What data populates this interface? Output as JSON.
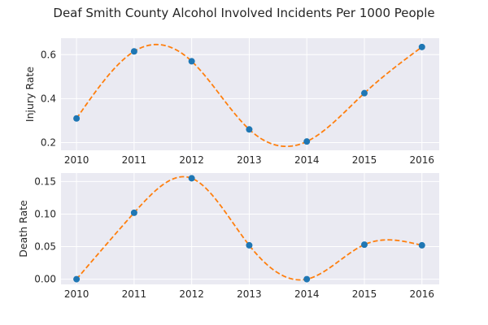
{
  "chart_data": {
    "title": "Deaf Smith County Alcohol Involved Incidents Per 1000 People",
    "subplots": [
      {
        "type": "scatter",
        "ylabel": "Injury Rate",
        "x": [
          2010,
          2011,
          2012,
          2013,
          2014,
          2015,
          2016
        ],
        "y": [
          0.31,
          0.615,
          0.57,
          0.26,
          0.205,
          0.425,
          0.635
        ],
        "ylim": [
          0.165,
          0.675
        ],
        "yticks": [
          "0.2",
          "0.4",
          "0.6"
        ],
        "xticks": [
          "2010",
          "2011",
          "2012",
          "2013",
          "2014",
          "2015",
          "2016"
        ],
        "curve": "dashed spline fit",
        "grid": true
      },
      {
        "type": "scatter",
        "ylabel": "Death Rate",
        "x": [
          2010,
          2011,
          2012,
          2013,
          2014,
          2015,
          2016
        ],
        "y": [
          0.0,
          0.102,
          0.155,
          0.052,
          0.0,
          0.053,
          0.052
        ],
        "ylim": [
          -0.008,
          0.163
        ],
        "yticks": [
          "0.00",
          "0.05",
          "0.10",
          "0.15"
        ],
        "xticks": [
          "2010",
          "2011",
          "2012",
          "2013",
          "2014",
          "2015",
          "2016"
        ],
        "curve": "dashed spline fit",
        "grid": true
      }
    ],
    "colors": {
      "point": "#1f77b4",
      "curve": "#ff7f0e",
      "axes_bg": "#eaeaf2",
      "grid": "#ffffff"
    }
  }
}
